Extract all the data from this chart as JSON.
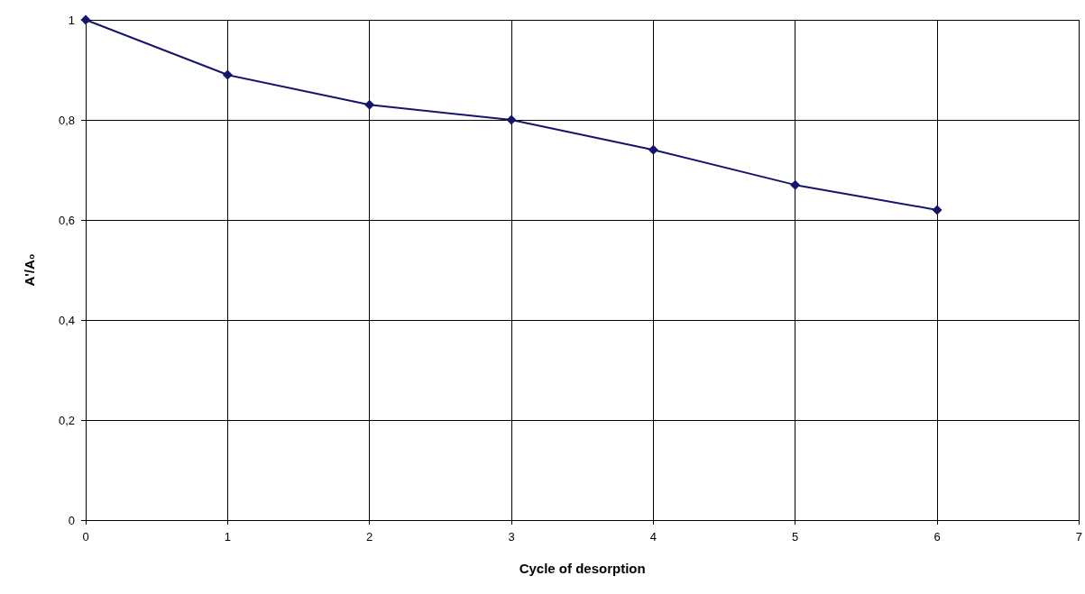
{
  "chart_data": {
    "type": "line",
    "xlabel": "Cycle of desorption",
    "ylabel": "A'/A₀",
    "x": [
      0,
      1,
      2,
      3,
      4,
      5,
      6
    ],
    "series": [
      {
        "color": "#15156b",
        "values": [
          1,
          0.89,
          0.83,
          0.8,
          0.74,
          0.67,
          0.62
        ]
      }
    ],
    "xlim": [
      0,
      7
    ],
    "xticks": [
      0,
      1,
      2,
      3,
      4,
      5,
      6,
      7
    ],
    "ylim": [
      0,
      1
    ],
    "yticks": [
      0,
      {
        "value": 0.2,
        "label": "0,2"
      },
      {
        "value": 0.4,
        "label": "0,4"
      },
      {
        "value": 0.6,
        "label": "0,6"
      },
      {
        "value": 0.8,
        "label": "0,8"
      },
      1
    ],
    "grid": true,
    "marker": "diamond",
    "line_style": "solid"
  }
}
